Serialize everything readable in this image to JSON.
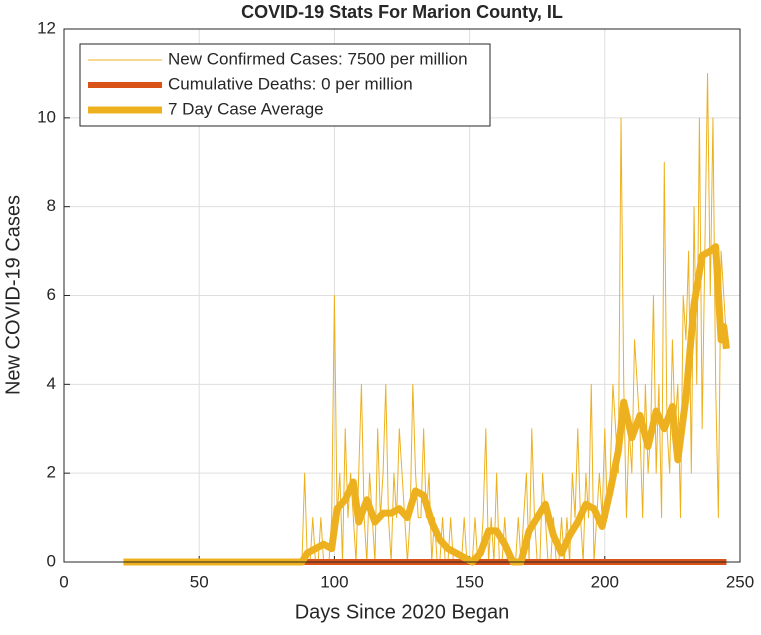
{
  "chart_data": {
    "type": "line",
    "title": "COVID-19 Stats For Marion County, IL",
    "x_label": "Days Since 2020 Began",
    "y_label": "New COVID-19 Cases",
    "xlim": [
      0,
      250
    ],
    "xticks": [
      0,
      50,
      100,
      150,
      200,
      250
    ],
    "ylim": [
      0,
      12
    ],
    "yticks": [
      0,
      2,
      4,
      6,
      8,
      10,
      12
    ],
    "grid": true,
    "legend": "top-left",
    "series": [
      {
        "name": "New Confirmed Cases: 7500 per million",
        "color": "#EDB120",
        "width": 1,
        "x": [
          88,
          89,
          90,
          91,
          92,
          93,
          94,
          95,
          96,
          97,
          98,
          99,
          100,
          101,
          102,
          103,
          104,
          105,
          106,
          107,
          108,
          109,
          110,
          111,
          112,
          113,
          114,
          115,
          116,
          117,
          118,
          119,
          120,
          121,
          122,
          123,
          124,
          125,
          126,
          127,
          128,
          129,
          130,
          131,
          132,
          133,
          134,
          135,
          136,
          137,
          138,
          139,
          140,
          141,
          142,
          143,
          144,
          145,
          146,
          147,
          148,
          149,
          150,
          151,
          152,
          153,
          154,
          155,
          156,
          157,
          158,
          159,
          160,
          161,
          162,
          163,
          164,
          165,
          166,
          167,
          168,
          169,
          170,
          171,
          172,
          173,
          174,
          175,
          176,
          177,
          178,
          179,
          180,
          181,
          182,
          183,
          184,
          185,
          186,
          187,
          188,
          189,
          190,
          191,
          192,
          193,
          194,
          195,
          196,
          197,
          198,
          199,
          200,
          201,
          202,
          203,
          204,
          205,
          206,
          207,
          208,
          209,
          210,
          211,
          212,
          213,
          214,
          215,
          216,
          217,
          218,
          219,
          220,
          221,
          222,
          223,
          224,
          225,
          226,
          227,
          228,
          229,
          230,
          231,
          232,
          233,
          234,
          235,
          236,
          237,
          238,
          239,
          240,
          241,
          242,
          243,
          244,
          245
        ],
        "values": [
          0,
          2,
          0,
          0,
          1,
          0,
          0,
          1,
          0,
          0,
          0,
          1,
          6,
          1,
          2,
          0,
          3,
          1,
          2,
          1,
          0,
          2,
          4,
          1,
          0,
          2,
          1,
          0,
          3,
          1,
          2,
          4,
          1,
          0,
          2,
          1,
          3,
          2,
          1,
          0,
          1,
          4,
          2,
          1,
          1,
          3,
          1,
          2,
          0,
          1,
          0,
          0,
          1,
          0,
          0,
          1,
          0,
          0,
          0,
          0,
          1,
          0,
          0,
          0,
          1,
          0,
          0,
          1,
          3,
          0,
          1,
          0,
          2,
          0,
          0,
          1,
          0,
          0,
          0,
          0,
          1,
          0,
          1,
          2,
          0,
          3,
          1,
          0,
          0,
          2,
          1,
          0,
          0,
          1,
          0,
          0,
          1,
          0,
          1,
          0,
          2,
          1,
          3,
          1,
          0,
          2,
          1,
          4,
          0,
          1,
          2,
          1,
          3,
          1,
          2,
          4,
          3,
          2,
          10,
          4,
          1,
          3,
          2,
          5,
          4,
          3,
          1,
          4,
          2,
          3,
          6,
          2,
          4,
          1,
          9,
          3,
          2,
          5,
          3,
          4,
          1,
          6,
          5,
          7,
          2,
          8,
          4,
          10,
          3,
          7,
          11,
          6,
          10,
          4,
          1,
          7,
          6,
          5
        ]
      },
      {
        "name": "Cumulative Deaths: 0 per million",
        "color": "#D95319",
        "width": 6,
        "x": [
          22,
          245
        ],
        "values": [
          0,
          0
        ]
      },
      {
        "name": "7 Day Case Average",
        "color": "#EDB120",
        "width": 7,
        "x": [
          22,
          88,
          90,
          93,
          96,
          99,
          101,
          104,
          107,
          109,
          112,
          115,
          118,
          121,
          124,
          127,
          130,
          133,
          136,
          139,
          142,
          145,
          148,
          151,
          154,
          157,
          160,
          163,
          166,
          169,
          172,
          175,
          178,
          181,
          184,
          187,
          190,
          193,
          196,
          199,
          202,
          205,
          207,
          210,
          213,
          216,
          219,
          222,
          225,
          227,
          230,
          233,
          236,
          239,
          241,
          243,
          244,
          245
        ],
        "values": [
          0,
          0,
          0.2,
          0.3,
          0.4,
          0.3,
          1.2,
          1.4,
          1.8,
          0.9,
          1.4,
          0.9,
          1.1,
          1.1,
          1.2,
          1.0,
          1.6,
          1.5,
          0.9,
          0.5,
          0.3,
          0.2,
          0.1,
          0,
          0.2,
          0.7,
          0.7,
          0.4,
          0,
          0,
          0.7,
          1.0,
          1.3,
          0.6,
          0.2,
          0.6,
          0.9,
          1.3,
          1.2,
          0.8,
          1.6,
          2.5,
          3.6,
          2.8,
          3.3,
          2.6,
          3.4,
          3.0,
          3.5,
          2.3,
          3.7,
          5.8,
          6.9,
          7.0,
          7.1,
          5.0,
          5.3,
          4.8
        ]
      }
    ]
  }
}
